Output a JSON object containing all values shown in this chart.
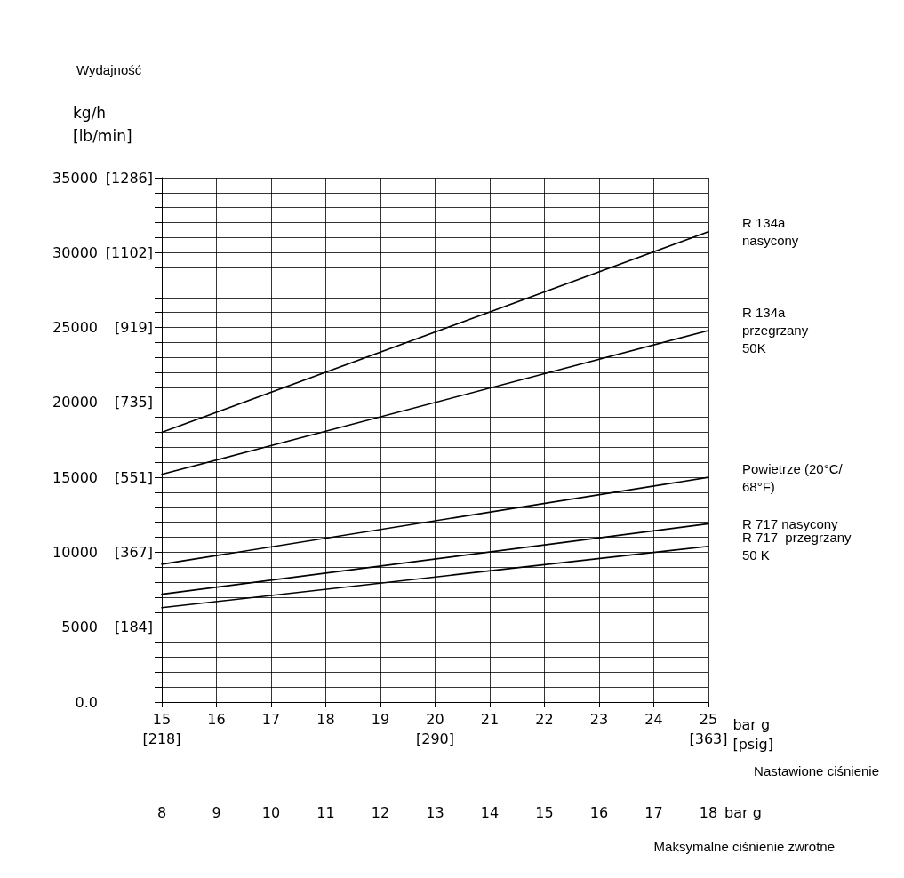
{
  "chart_data": {
    "type": "line",
    "title": "Wydajność",
    "ylabel": "kg/h",
    "y2label": "[lb/min]",
    "xlabel": "bar g\n[psig]",
    "x2label": "bar g",
    "annotations": [
      "Nastawione ciśnienie",
      "Maksymalne ciśnienie zwrotne"
    ],
    "x": [
      15,
      25
    ],
    "xlim": [
      15,
      25
    ],
    "xticks": [
      {
        "value": 15,
        "label": "15\n[218]"
      },
      16,
      17,
      18,
      19,
      {
        "value": 20,
        "label": "20\n[290]"
      },
      21,
      22,
      23,
      24,
      {
        "value": 25,
        "label": "25\n[363]"
      }
    ],
    "x2lim": [
      8,
      18
    ],
    "x2ticks": [
      8,
      9,
      10,
      11,
      12,
      13,
      14,
      15,
      16,
      17,
      18
    ],
    "ylim": [
      0,
      35000
    ],
    "yticks": [
      {
        "value": 0,
        "label": "0.0"
      },
      {
        "value": 1000,
        "label": null
      },
      {
        "value": 2000,
        "label": null
      },
      {
        "value": 3000,
        "label": null
      },
      {
        "value": 4000,
        "label": null
      },
      5000,
      {
        "value": 6000,
        "label": null
      },
      {
        "value": 7000,
        "label": null
      },
      {
        "value": 8000,
        "label": null
      },
      {
        "value": 9000,
        "label": null
      },
      10000,
      {
        "value": 11000,
        "label": null
      },
      {
        "value": 12000,
        "label": null
      },
      {
        "value": 13000,
        "label": null
      },
      {
        "value": 14000,
        "label": null
      },
      15000,
      {
        "value": 16000,
        "label": null
      },
      {
        "value": 17000,
        "label": null
      },
      {
        "value": 18000,
        "label": null
      },
      {
        "value": 19000,
        "label": null
      },
      20000,
      {
        "value": 21000,
        "label": null
      },
      {
        "value": 22000,
        "label": null
      },
      {
        "value": 23000,
        "label": null
      },
      {
        "value": 24000,
        "label": null
      },
      25000,
      {
        "value": 26000,
        "label": null
      },
      {
        "value": 27000,
        "label": null
      },
      {
        "value": 28000,
        "label": null
      },
      {
        "value": 29000,
        "label": null
      },
      30000,
      {
        "value": 31000,
        "label": null
      },
      {
        "value": 32000,
        "label": null
      },
      {
        "value": 33000,
        "label": null
      },
      {
        "value": 34000,
        "label": null
      },
      35000
    ],
    "y2lim": [
      0,
      1286
    ],
    "y2ticks": [
      {
        "value": 184,
        "label": "[184]"
      },
      {
        "value": 367,
        "label": "[367]"
      },
      {
        "value": 551,
        "label": "[551]"
      },
      {
        "value": 735,
        "label": "[735]"
      },
      {
        "value": 919,
        "label": "[919]"
      },
      {
        "value": 1102,
        "label": "[1102]"
      },
      {
        "value": 1286,
        "label": "[1286]"
      }
    ],
    "grid": true,
    "marker": "none",
    "line_style": "solid",
    "series": [
      {
        "name": "R 134a\nnasycony",
        "color": "#000000",
        "values": [
          18000,
          31400
        ]
      },
      {
        "name": "R 134a\nprzegrzany\n50K",
        "color": "#000000",
        "values": [
          15200,
          24800
        ]
      },
      {
        "name": "Powietrze (20°C/\n68°F)",
        "color": "#000000",
        "values": [
          9200,
          15000
        ]
      },
      {
        "name": "R 717 nasycony",
        "color": "#000000",
        "values": [
          7200,
          11900
        ]
      },
      {
        "name": "R 717  przegrzany\n50 K",
        "color": "#000000",
        "values": [
          6300,
          10400
        ]
      }
    ]
  }
}
